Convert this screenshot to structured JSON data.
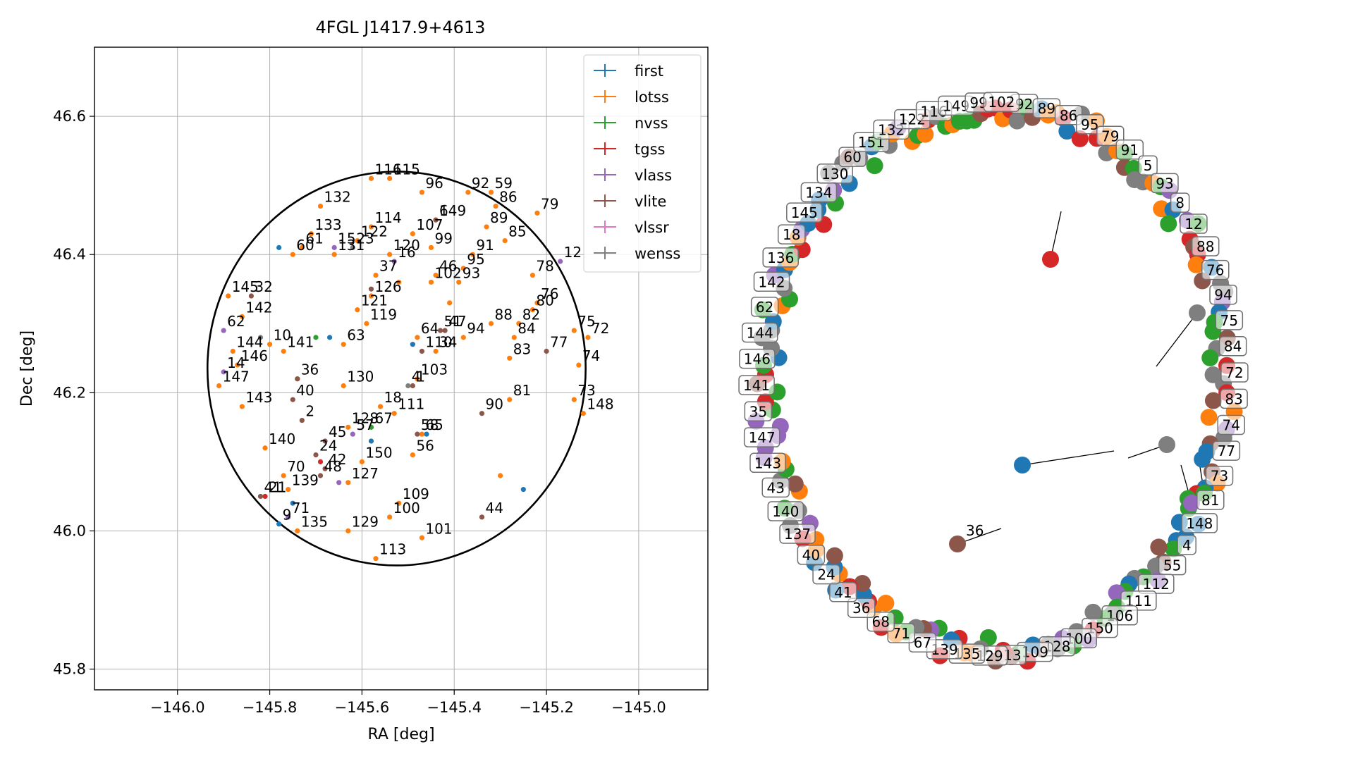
{
  "chart_data": [
    {
      "type": "scatter",
      "title": "4FGL J1417.9+4613",
      "xlabel": "RA [deg]",
      "ylabel": "Dec [deg]",
      "xlim": [
        -146.18,
        -144.85
      ],
      "ylim": [
        45.77,
        46.7
      ],
      "xticks": [
        -146.0,
        -145.8,
        -145.6,
        -145.4,
        -145.2,
        -145.0
      ],
      "xtick_labels": [
        "−146.0",
        "−145.8",
        "−145.6",
        "−145.4",
        "−145.2",
        "−145.0"
      ],
      "yticks": [
        45.8,
        46.0,
        46.2,
        46.4,
        46.6
      ],
      "ytick_labels": [
        "45.8",
        "46.0",
        "46.2",
        "46.4",
        "46.6"
      ],
      "grid": true,
      "legend_position": "top-right",
      "circle": {
        "center": [
          -145.525,
          46.235
        ],
        "radius_ra_deg": 0.41,
        "radius_dec_deg": 0.285
      },
      "series": [
        {
          "name": "first",
          "color": "#1f77b4",
          "points": [
            [
              -145.78,
              46.41,
              ""
            ],
            [
              -145.67,
              46.28,
              ""
            ],
            [
              -145.49,
              46.27,
              ""
            ],
            [
              -145.58,
              46.13,
              ""
            ],
            [
              -145.75,
              46.04,
              ""
            ],
            [
              -145.78,
              46.01,
              "9"
            ],
            [
              -145.46,
              46.14,
              ""
            ],
            [
              -145.25,
              46.06,
              ""
            ]
          ]
        },
        {
          "name": "lotss",
          "color": "#ff7f0e",
          "points": [
            [
              -145.58,
              46.51,
              "116"
            ],
            [
              -145.54,
              46.51,
              "115"
            ],
            [
              -145.47,
              46.49,
              "96"
            ],
            [
              -145.37,
              46.49,
              "92"
            ],
            [
              -145.32,
              46.49,
              "59"
            ],
            [
              -145.31,
              46.47,
              "86"
            ],
            [
              -145.22,
              46.46,
              "79"
            ],
            [
              -145.69,
              46.47,
              "132"
            ],
            [
              -145.58,
              46.44,
              "114"
            ],
            [
              -145.49,
              46.43,
              "107"
            ],
            [
              -145.44,
              46.45,
              "6"
            ],
            [
              -145.33,
              46.44,
              "89"
            ],
            [
              -145.29,
              46.42,
              "85"
            ],
            [
              -145.71,
              46.43,
              "133"
            ],
            [
              -145.73,
              46.41,
              "61"
            ],
            [
              -145.75,
              46.4,
              "60"
            ],
            [
              -145.66,
              46.4,
              "131"
            ],
            [
              -145.61,
              46.42,
              "122"
            ],
            [
              -145.54,
              46.4,
              "120"
            ],
            [
              -145.45,
              46.41,
              "99"
            ],
            [
              -145.36,
              46.4,
              "91"
            ],
            [
              -145.38,
              46.38,
              "95"
            ],
            [
              -145.23,
              46.37,
              "78"
            ],
            [
              -145.57,
              46.37,
              "37"
            ],
            [
              -145.45,
              46.36,
              "102"
            ],
            [
              -145.44,
              46.37,
              "46"
            ],
            [
              -145.39,
              46.36,
              "93"
            ],
            [
              -145.89,
              46.34,
              "145"
            ],
            [
              -145.86,
              46.31,
              "142"
            ],
            [
              -145.22,
              46.33,
              "76"
            ],
            [
              -145.23,
              46.32,
              "80"
            ],
            [
              -145.58,
              46.34,
              "126"
            ],
            [
              -145.61,
              46.32,
              "121"
            ],
            [
              -145.59,
              46.3,
              "119"
            ],
            [
              -145.48,
              46.28,
              "64"
            ],
            [
              -145.38,
              46.28,
              "94"
            ],
            [
              -145.32,
              46.3,
              "88"
            ],
            [
              -145.26,
              46.3,
              "82"
            ],
            [
              -145.27,
              46.28,
              "84"
            ],
            [
              -145.14,
              46.29,
              "75"
            ],
            [
              -145.11,
              46.28,
              "72"
            ],
            [
              -145.88,
              46.26,
              "144"
            ],
            [
              -145.87,
              46.24,
              "146"
            ],
            [
              -145.8,
              46.27,
              "10"
            ],
            [
              -145.64,
              46.27,
              "63"
            ],
            [
              -145.44,
              46.26,
              "34"
            ],
            [
              -145.28,
              46.25,
              "83"
            ],
            [
              -145.13,
              46.24,
              "74"
            ],
            [
              -145.91,
              46.21,
              "147"
            ],
            [
              -145.86,
              46.18,
              "143"
            ],
            [
              -145.77,
              46.26,
              "141"
            ],
            [
              -145.64,
              46.21,
              "130"
            ],
            [
              -145.48,
              46.22,
              "103"
            ],
            [
              -145.28,
              46.19,
              "81"
            ],
            [
              -145.14,
              46.19,
              "73"
            ],
            [
              -145.12,
              46.17,
              "148"
            ],
            [
              -145.56,
              46.18,
              "18"
            ],
            [
              -145.53,
              46.17,
              "111"
            ],
            [
              -145.63,
              46.15,
              "128"
            ],
            [
              -145.47,
              46.14,
              "65"
            ],
            [
              -145.49,
              46.11,
              "56"
            ],
            [
              -145.81,
              46.12,
              "140"
            ],
            [
              -145.77,
              46.08,
              "70"
            ],
            [
              -145.63,
              46.07,
              "127"
            ],
            [
              -145.52,
              46.04,
              "109"
            ],
            [
              -145.74,
              46.0,
              "135"
            ],
            [
              -145.63,
              46.0,
              "129"
            ],
            [
              -145.54,
              46.02,
              "100"
            ],
            [
              -145.47,
              45.99,
              "101"
            ],
            [
              -145.57,
              45.96,
              "113"
            ],
            [
              -145.76,
              46.06,
              "139"
            ],
            [
              -145.6,
              46.1,
              "150"
            ],
            [
              -145.3,
              46.08,
              ""
            ],
            [
              -145.41,
              46.33,
              ""
            ],
            [
              -145.52,
              46.36,
              ""
            ]
          ]
        },
        {
          "name": "nvss",
          "color": "#2ca02c",
          "points": [
            [
              -145.7,
              46.28,
              ""
            ],
            [
              -145.74,
              46.22,
              ""
            ],
            [
              -145.58,
              46.15,
              "67"
            ]
          ]
        },
        {
          "name": "tgss",
          "color": "#d62728",
          "points": [
            [
              -145.69,
              46.1,
              ""
            ],
            [
              -145.81,
              46.05,
              "21"
            ]
          ]
        },
        {
          "name": "vlass",
          "color": "#9467bd",
          "points": [
            [
              -145.66,
              46.41,
              "15"
            ],
            [
              -145.53,
              46.39,
              "16"
            ],
            [
              -145.9,
              46.29,
              "62"
            ],
            [
              -145.9,
              46.23,
              "14"
            ],
            [
              -145.17,
              46.39,
              "12"
            ],
            [
              -145.62,
              46.14,
              "57"
            ],
            [
              -145.65,
              46.07,
              ""
            ],
            [
              -145.76,
              46.02,
              "71"
            ]
          ]
        },
        {
          "name": "vlite",
          "color": "#8c564b",
          "points": [
            [
              -145.44,
              46.45,
              "149"
            ],
            [
              -145.84,
              46.34,
              "32"
            ],
            [
              -145.58,
              46.35,
              ""
            ],
            [
              -145.43,
              46.29,
              "51"
            ],
            [
              -145.47,
              46.26,
              "110"
            ],
            [
              -145.74,
              46.22,
              "36"
            ],
            [
              -145.75,
              46.19,
              "40"
            ],
            [
              -145.73,
              46.16,
              "2"
            ],
            [
              -145.68,
              46.13,
              "45"
            ],
            [
              -145.7,
              46.11,
              "24"
            ],
            [
              -145.68,
              46.09,
              "42"
            ],
            [
              -145.69,
              46.08,
              "48"
            ],
            [
              -145.49,
              46.21,
              "1"
            ],
            [
              -145.34,
              46.17,
              "90"
            ],
            [
              -145.2,
              46.26,
              "77"
            ],
            [
              -145.34,
              46.02,
              "44"
            ],
            [
              -145.82,
              46.05,
              "41"
            ],
            [
              -145.48,
              46.14,
              "58"
            ],
            [
              -145.42,
              46.29,
              "47"
            ]
          ]
        },
        {
          "name": "vlssr",
          "color": "#e377c2",
          "points": []
        },
        {
          "name": "wenss",
          "color": "#7f7f7f",
          "points": [
            [
              -145.82,
              46.28,
              ""
            ],
            [
              -145.5,
              46.21,
              "4"
            ],
            [
              -145.62,
              46.41,
              "23"
            ]
          ]
        }
      ]
    },
    {
      "type": "scatter",
      "title": "",
      "series": [
        {
          "name": "first",
          "color": "#1f77b4",
          "points": []
        },
        {
          "name": "lotss",
          "color": "#ff7f0e",
          "points": []
        },
        {
          "name": "nvss",
          "color": "#2ca02c",
          "points": []
        },
        {
          "name": "tgss",
          "color": "#d62728",
          "points": []
        },
        {
          "name": "vlass",
          "color": "#9467bd",
          "points": []
        },
        {
          "name": "vlite",
          "color": "#8c564b",
          "points": []
        },
        {
          "name": "wenss",
          "color": "#7f7f7f",
          "points": []
        }
      ],
      "ring_labels": [
        "92",
        "89",
        "86",
        "95",
        "79",
        "91",
        "5",
        "93",
        "8",
        "12",
        "88",
        "76",
        "94",
        "75",
        "84",
        "72",
        "83",
        "74",
        "77",
        "73",
        "81",
        "148",
        "4",
        "55",
        "112",
        "111",
        "106",
        "150",
        "100",
        "128",
        "109",
        "13",
        "129",
        "135",
        "139",
        "67",
        "71",
        "68",
        "36",
        "41",
        "24",
        "40",
        "137",
        "140",
        "43",
        "143",
        "147",
        "35",
        "141",
        "146",
        "144",
        "62",
        "142",
        "136",
        "18",
        "145",
        "134",
        "130",
        "60",
        "151",
        "132",
        "122",
        "116",
        "149",
        "99",
        "102"
      ],
      "inner_points": [
        {
          "color": "#d62728",
          "label": ""
        },
        {
          "color": "#7f7f7f",
          "label": ""
        },
        {
          "color": "#7f7f7f",
          "label": ""
        },
        {
          "color": "#1f77b4",
          "label": ""
        },
        {
          "color": "#2ca02c",
          "label": ""
        },
        {
          "color": "#9467bd",
          "label": ""
        },
        {
          "color": "#8c564b",
          "label": "36"
        }
      ]
    }
  ]
}
